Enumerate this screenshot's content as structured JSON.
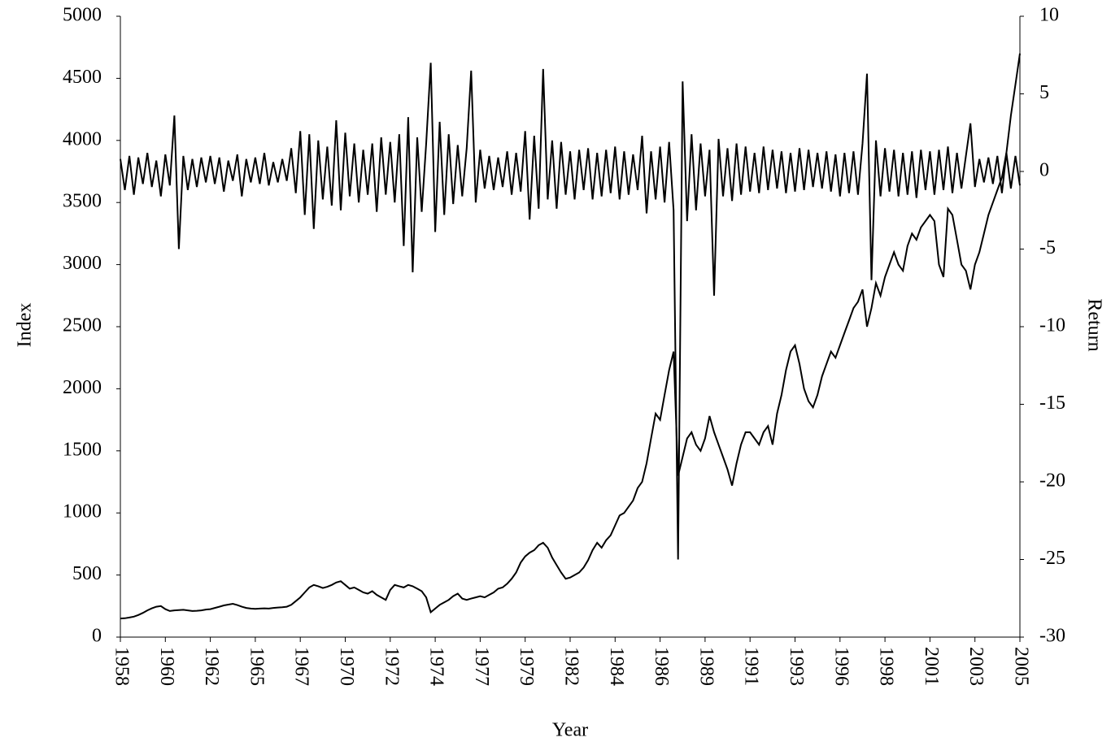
{
  "chart_data": {
    "type": "line",
    "x_label": "Year",
    "y_label": "Index",
    "y2_label": "Return",
    "categories": [
      "1958",
      null,
      null,
      null,
      null,
      null,
      null,
      null,
      null,
      null,
      "1960",
      null,
      null,
      null,
      null,
      null,
      null,
      null,
      null,
      null,
      "1962",
      null,
      null,
      null,
      null,
      null,
      null,
      null,
      null,
      null,
      "1965",
      null,
      null,
      null,
      null,
      null,
      null,
      null,
      null,
      null,
      "1967",
      null,
      null,
      null,
      null,
      null,
      null,
      null,
      null,
      null,
      "1970",
      null,
      null,
      null,
      null,
      null,
      null,
      null,
      null,
      null,
      "1972",
      null,
      null,
      null,
      null,
      null,
      null,
      null,
      null,
      null,
      "1974",
      null,
      null,
      null,
      null,
      null,
      null,
      null,
      null,
      null,
      "1977",
      null,
      null,
      null,
      null,
      null,
      null,
      null,
      null,
      null,
      "1979",
      null,
      null,
      null,
      null,
      null,
      null,
      null,
      null,
      null,
      "1982",
      null,
      null,
      null,
      null,
      null,
      null,
      null,
      null,
      null,
      "1984",
      null,
      null,
      null,
      null,
      null,
      null,
      null,
      null,
      null,
      "1986",
      null,
      null,
      null,
      null,
      null,
      null,
      null,
      null,
      null,
      "1989",
      null,
      null,
      null,
      null,
      null,
      null,
      null,
      null,
      null,
      "1991",
      null,
      null,
      null,
      null,
      null,
      null,
      null,
      null,
      null,
      "1993",
      null,
      null,
      null,
      null,
      null,
      null,
      null,
      null,
      null,
      "1996",
      null,
      null,
      null,
      null,
      null,
      null,
      null,
      null,
      null,
      "1998",
      null,
      null,
      null,
      null,
      null,
      null,
      null,
      null,
      null,
      "2001",
      null,
      null,
      null,
      null,
      null,
      null,
      null,
      null,
      null,
      "2003",
      null,
      null,
      null,
      null,
      null,
      null,
      null,
      null,
      null,
      "2005"
    ],
    "series": [
      {
        "color": "#000000",
        "values": [
          150,
          152,
          158,
          165,
          178,
          195,
          215,
          232,
          245,
          250,
          225,
          210,
          215,
          218,
          220,
          215,
          210,
          212,
          215,
          222,
          225,
          235,
          245,
          255,
          262,
          268,
          258,
          245,
          235,
          230,
          228,
          230,
          232,
          230,
          235,
          238,
          240,
          245,
          260,
          290,
          320,
          360,
          400,
          420,
          410,
          395,
          405,
          420,
          440,
          450,
          420,
          390,
          400,
          380,
          360,
          350,
          370,
          340,
          320,
          300,
          380,
          420,
          410,
          400,
          420,
          410,
          390,
          370,
          320,
          200,
          230,
          260,
          280,
          300,
          330,
          350,
          310,
          300,
          310,
          320,
          330,
          320,
          340,
          360,
          390,
          400,
          430,
          470,
          520,
          600,
          650,
          680,
          700,
          740,
          760,
          720,
          640,
          580,
          520,
          470,
          480,
          500,
          520,
          560,
          620,
          700,
          760,
          720,
          780,
          820,
          900,
          980,
          1000,
          1050,
          1100,
          1200,
          1250,
          1400,
          1600,
          1800,
          1750,
          1950,
          2150,
          2300,
          1300,
          1450,
          1600,
          1650,
          1550,
          1500,
          1600,
          1780,
          1650,
          1550,
          1450,
          1350,
          1220,
          1400,
          1550,
          1650,
          1650,
          1600,
          1550,
          1650,
          1700,
          1550,
          1800,
          1950,
          2150,
          2300,
          2350,
          2200,
          2000,
          1900,
          1850,
          1950,
          2100,
          2200,
          2300,
          2250,
          2350,
          2450,
          2550,
          2650,
          2700,
          2800,
          2500,
          2650,
          2850,
          2750,
          2900,
          3000,
          3100,
          3000,
          2950,
          3150,
          3250,
          3200,
          3300,
          3350,
          3400,
          3350,
          3000,
          2900,
          3450,
          3400,
          3200,
          3000,
          2950,
          2800,
          3000,
          3100,
          3250,
          3400,
          3500,
          3600,
          3700,
          3900,
          4200,
          4450,
          4700
        ]
      },
      {
        "color": "#000000",
        "axis": "y2",
        "values": [
          0.8,
          -1.2,
          1,
          -1.5,
          0.9,
          -0.8,
          1.2,
          -1,
          0.7,
          -1.6,
          1.1,
          -0.9,
          3.6,
          -5,
          1,
          -1.2,
          0.8,
          -1,
          0.9,
          -0.7,
          1,
          -0.8,
          0.9,
          -1.3,
          0.7,
          -0.6,
          1.1,
          -1.6,
          0.8,
          -0.7,
          0.9,
          -0.8,
          1.2,
          -0.9,
          0.6,
          -0.7,
          0.8,
          -0.6,
          1.5,
          -1.4,
          2.6,
          -2.8,
          2.4,
          -3.7,
          2,
          -1.8,
          1.6,
          -2.2,
          3.3,
          -2.5,
          2.5,
          -1.6,
          1.8,
          -2,
          1.4,
          -1.5,
          1.8,
          -2.6,
          2.2,
          -1.5,
          1.9,
          -2,
          2.4,
          -4.8,
          3.5,
          -6.5,
          2.2,
          -2.6,
          1.8,
          7,
          -3.9,
          3.2,
          -2.8,
          2.4,
          -2.1,
          1.7,
          -1.6,
          1.5,
          6.5,
          -2,
          1.4,
          -1.1,
          1,
          -1.2,
          0.9,
          -1,
          1.3,
          -1.5,
          1.2,
          -1.3,
          2.6,
          -3.1,
          2.3,
          -2.4,
          6.6,
          -1.8,
          2,
          -2.4,
          1.9,
          -1.5,
          1.3,
          -1.8,
          1.4,
          -1.2,
          1.5,
          -1.8,
          1.2,
          -1.6,
          1.4,
          -1.4,
          1.6,
          -1.8,
          1.3,
          -1.5,
          1.1,
          -1.2,
          2.3,
          -2.7,
          1.3,
          -1.8,
          1.6,
          -2,
          1.9,
          -2.5,
          -25,
          5.8,
          -3.2,
          2.4,
          -2.5,
          1.8,
          -1.6,
          1.4,
          -8,
          2.1,
          -1.6,
          1.5,
          -1.9,
          1.8,
          -1.5,
          1.6,
          -1.3,
          1.2,
          -1.4,
          1.6,
          -1.2,
          1.4,
          -1.1,
          1.3,
          -1.4,
          1.2,
          -1.3,
          1.5,
          -1.2,
          1.4,
          -1,
          1.2,
          -1.1,
          1.3,
          -1.3,
          1.1,
          -1.6,
          1.2,
          -1.4,
          1.3,
          -1.5,
          1.8,
          6.3,
          -7,
          2,
          -1.6,
          1.5,
          -1.3,
          1.4,
          -1.6,
          1.2,
          -1.5,
          1.3,
          -1.7,
          1.4,
          -1.2,
          1.3,
          -1.5,
          1.4,
          -1.2,
          1.6,
          -1.4,
          1.2,
          -1.1,
          1,
          3.1,
          -1,
          0.8,
          -0.7,
          0.9,
          -0.8,
          1,
          -1.4,
          1.2,
          -1.1,
          1,
          -0.9
        ]
      }
    ],
    "ylim": [
      0,
      5000
    ],
    "yticks": [
      0,
      500,
      1000,
      1500,
      2000,
      2500,
      3000,
      3500,
      4000,
      4500,
      5000
    ],
    "y2lim": [
      -30,
      10
    ],
    "y2ticks": [
      -30,
      -25,
      -20,
      -15,
      -10,
      -5,
      0,
      5,
      10
    ]
  }
}
